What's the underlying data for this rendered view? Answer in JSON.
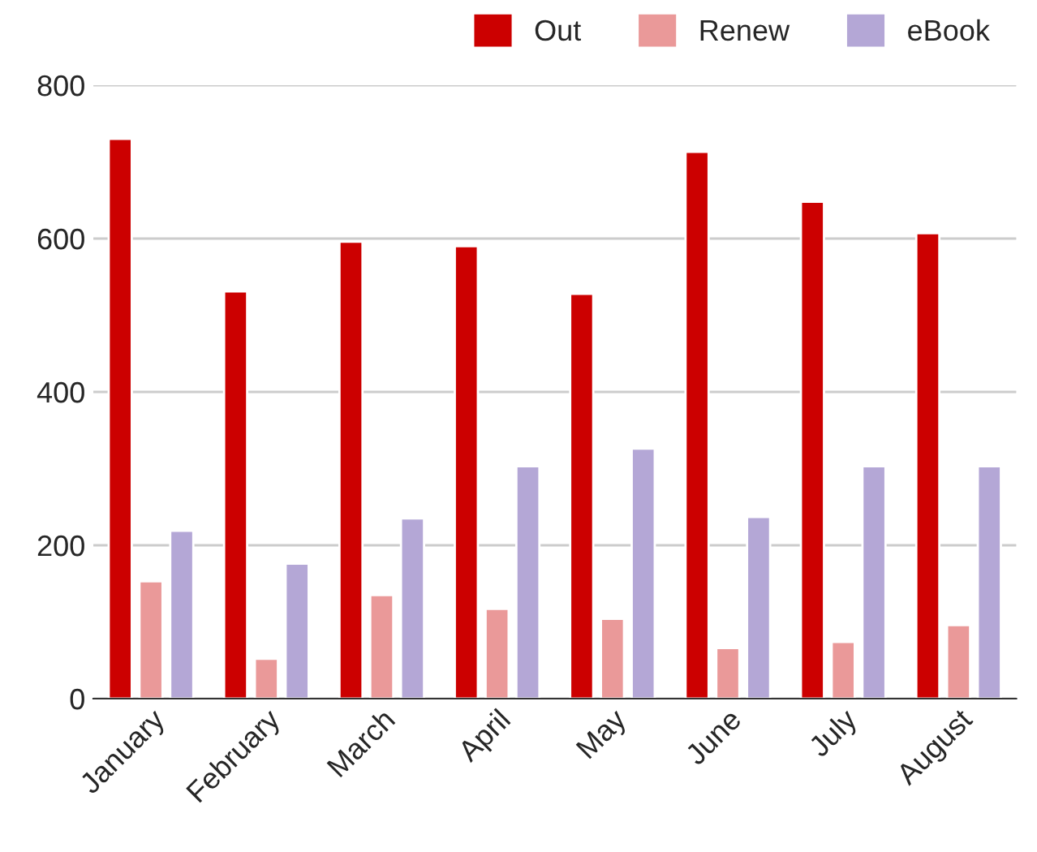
{
  "chart_data": {
    "type": "bar",
    "categories": [
      "January",
      "February",
      "March",
      "April",
      "May",
      "June",
      "July",
      "August"
    ],
    "series": [
      {
        "name": "Out",
        "color": "#cc0000",
        "values": [
          730,
          531,
          596,
          590,
          528,
          713,
          648,
          607
        ]
      },
      {
        "name": "Renew",
        "color": "#ea9999",
        "values": [
          153,
          52,
          135,
          117,
          104,
          66,
          74,
          96
        ]
      },
      {
        "name": "eBook",
        "color": "#b4a7d6",
        "values": [
          219,
          176,
          235,
          303,
          326,
          237,
          303,
          303
        ]
      }
    ],
    "ylim": [
      0,
      800
    ],
    "yticks": [
      0,
      200,
      400,
      600,
      800
    ],
    "grid": "y",
    "legend": "top right"
  }
}
